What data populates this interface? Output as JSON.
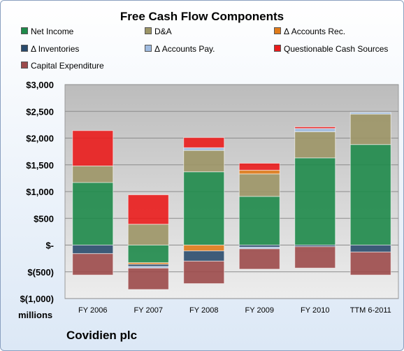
{
  "chart_data": {
    "type": "bar",
    "stacked": true,
    "title": "Free Cash Flow Components",
    "categories": [
      "FY 2006",
      "FY 2007",
      "FY 2008",
      "FY 2009",
      "FY 2010",
      "TTM 6-2011"
    ],
    "ylim": [
      -1000,
      3000
    ],
    "y_ticks": [
      3000,
      2500,
      2000,
      1500,
      1000,
      500,
      0,
      -500,
      -1000
    ],
    "y_tick_labels": [
      "$3,000",
      "$2,500",
      "$2,000",
      "$1,500",
      "$1,000",
      "$500",
      "$-",
      "$(500)",
      "$(1,000)"
    ],
    "y_unit_label": "millions",
    "grid": true,
    "legend_position": "top",
    "series": [
      {
        "name": "Net Income",
        "color": "#1e8a4a",
        "values": [
          1170,
          -330,
          1370,
          910,
          1630,
          1880
        ]
      },
      {
        "name": "D&A",
        "color": "#9c9566",
        "values": [
          310,
          390,
          400,
          420,
          490,
          570
        ]
      },
      {
        "name": "Δ Accounts Rec.",
        "color": "#e07b1a",
        "values": [
          0,
          -30,
          -110,
          70,
          0,
          0
        ]
      },
      {
        "name": "Δ Inventories",
        "color": "#2a4b6d",
        "values": [
          -160,
          -40,
          -190,
          -40,
          -30,
          -130
        ]
      },
      {
        "name": "Δ Accounts Pay.",
        "color": "#9fbbe0",
        "values": [
          0,
          -30,
          50,
          -30,
          60,
          30
        ]
      },
      {
        "name": "Questionable Cash Sources",
        "color": "#ea1c1c",
        "values": [
          660,
          550,
          190,
          130,
          30,
          0
        ]
      },
      {
        "name": "Capital Expenditure",
        "color": "#9c4a4a",
        "values": [
          -400,
          -400,
          -420,
          -380,
          -400,
          -430
        ]
      }
    ]
  },
  "footer": {
    "company": "Covidien plc"
  }
}
